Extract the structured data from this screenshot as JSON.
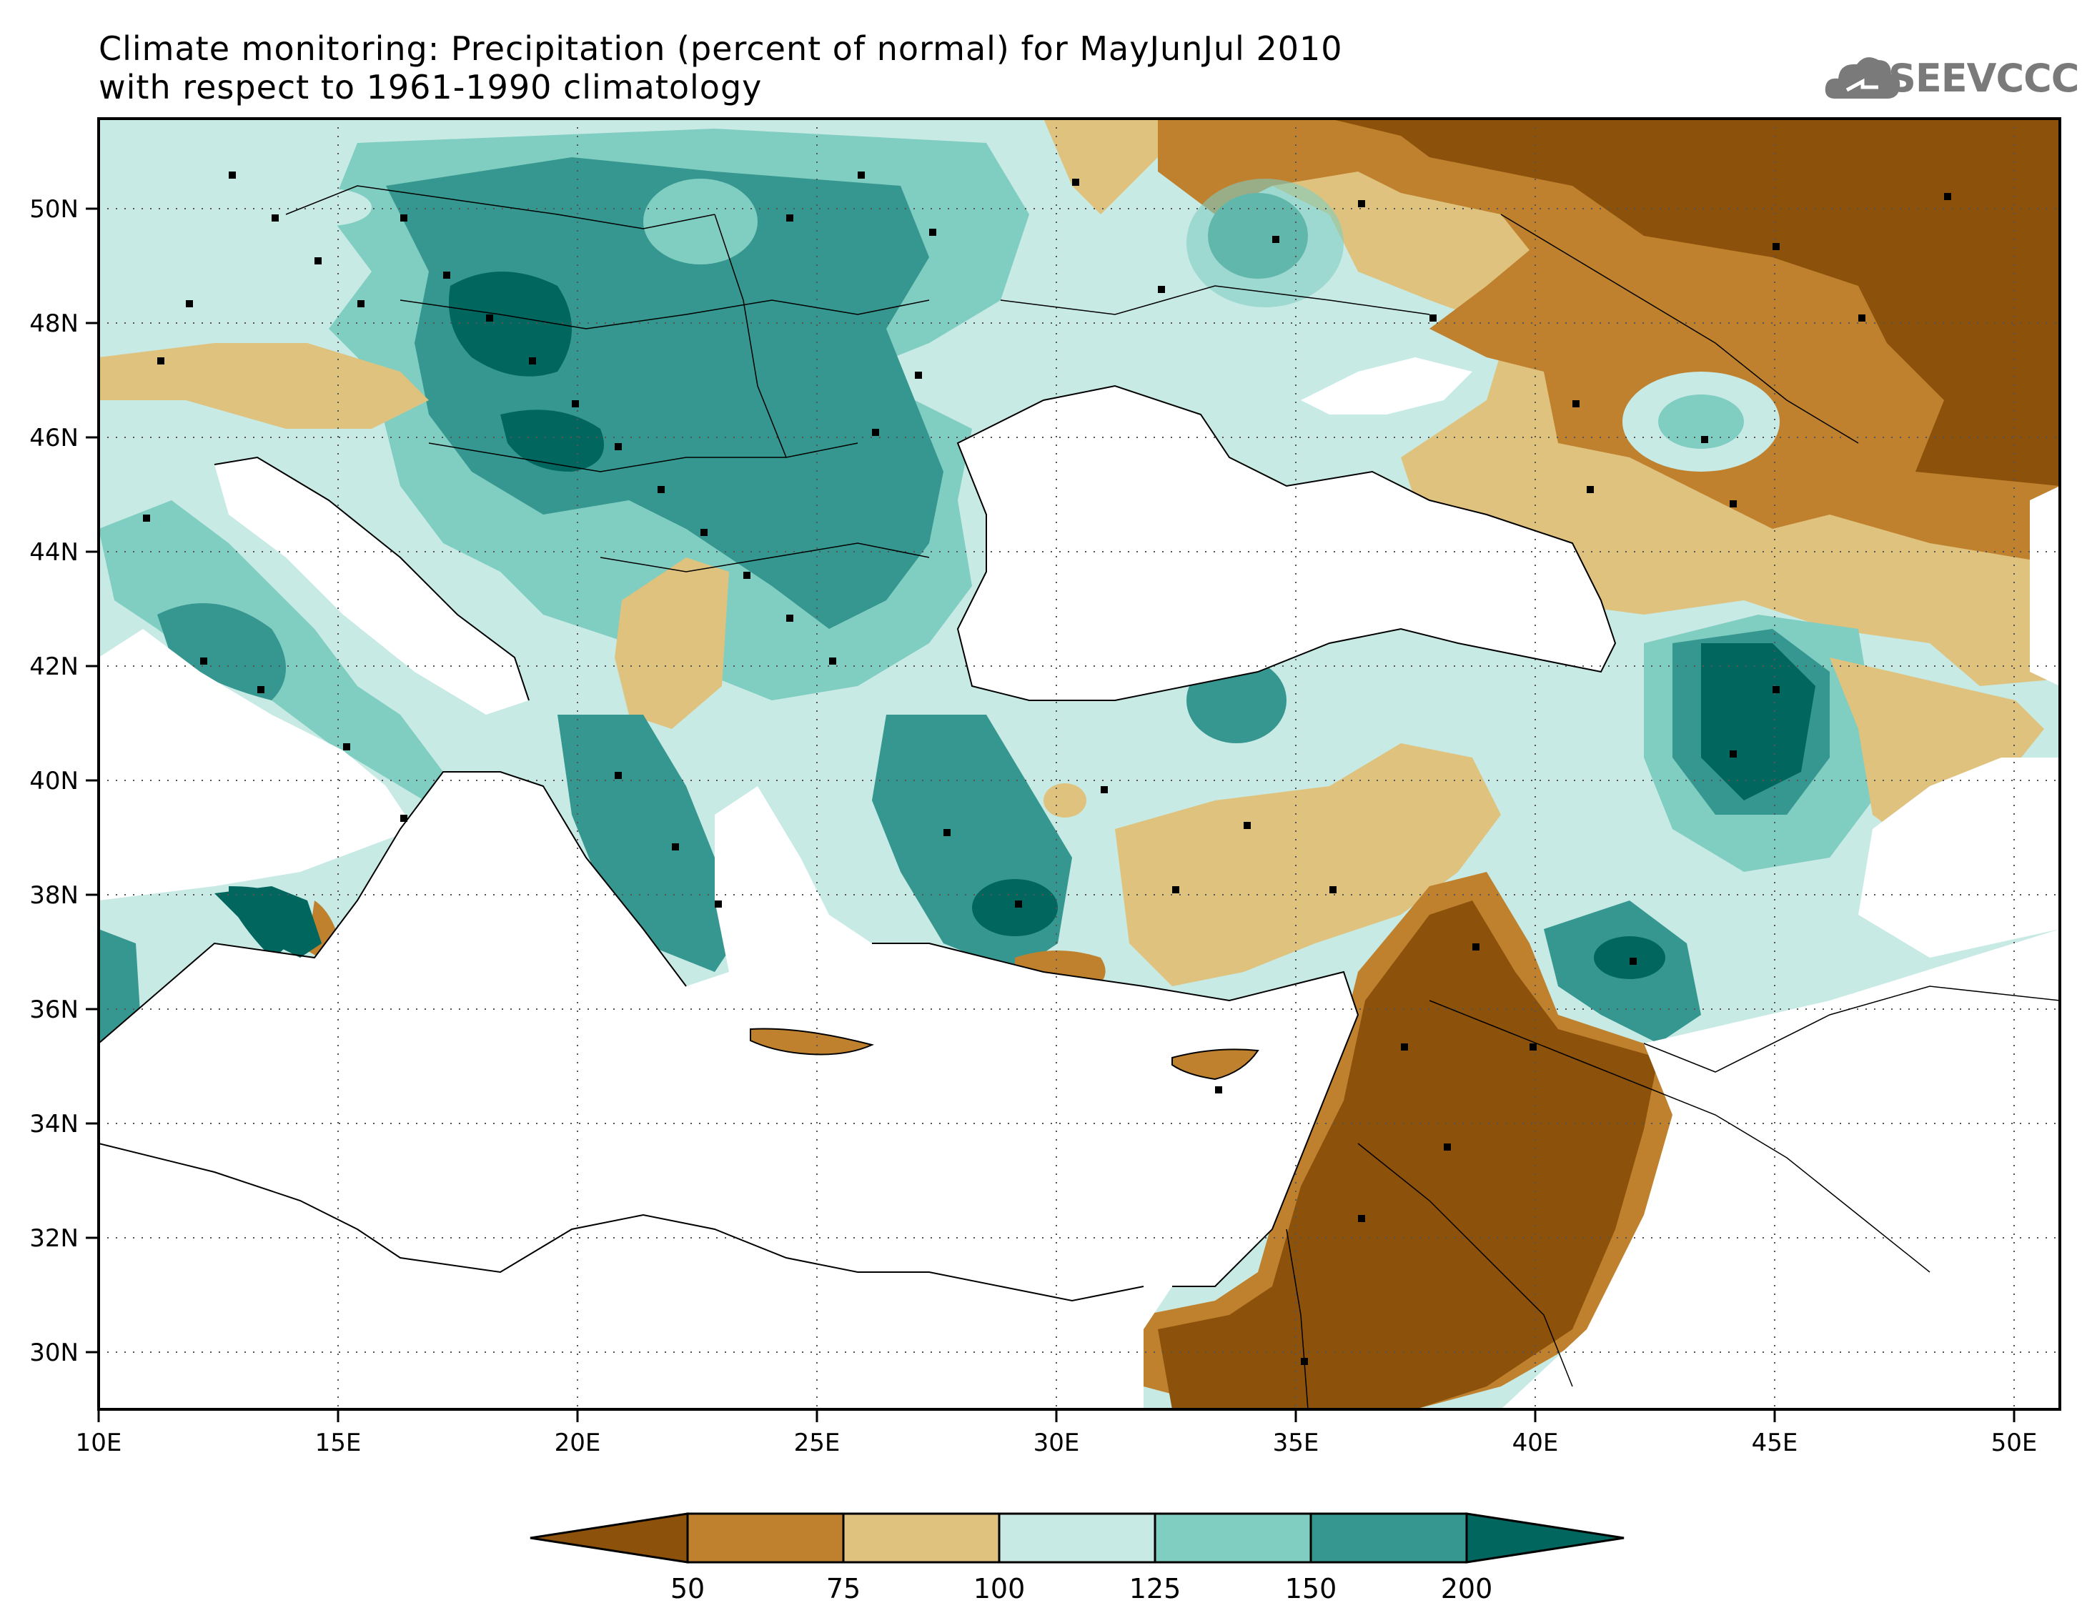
{
  "title": {
    "line1": "Climate monitoring: Precipitation (percent of normal) for MayJunJul 2010",
    "line2": "with respect to 1961-1990 climatology"
  },
  "logo": {
    "text": "SEEVCCC",
    "icon": "cloud-icon"
  },
  "map": {
    "lon_range": [
      10,
      51
    ],
    "lat_range": [
      29,
      51.5
    ],
    "lon_ticks": [
      "10E",
      "15E",
      "20E",
      "25E",
      "30E",
      "35E",
      "40E",
      "45E",
      "50E"
    ],
    "lat_ticks": [
      "30N",
      "32N",
      "34N",
      "36N",
      "38N",
      "40N",
      "42N",
      "44N",
      "46N",
      "48N",
      "50N"
    ],
    "gridlines": "dotted"
  },
  "colorbar": {
    "labels": [
      "50",
      "75",
      "100",
      "125",
      "150",
      "200"
    ],
    "colors": [
      "#8c510a",
      "#bf812d",
      "#dfc27d",
      "#c7eae5",
      "#80cdc1",
      "#35978f",
      "#01665e"
    ]
  }
}
